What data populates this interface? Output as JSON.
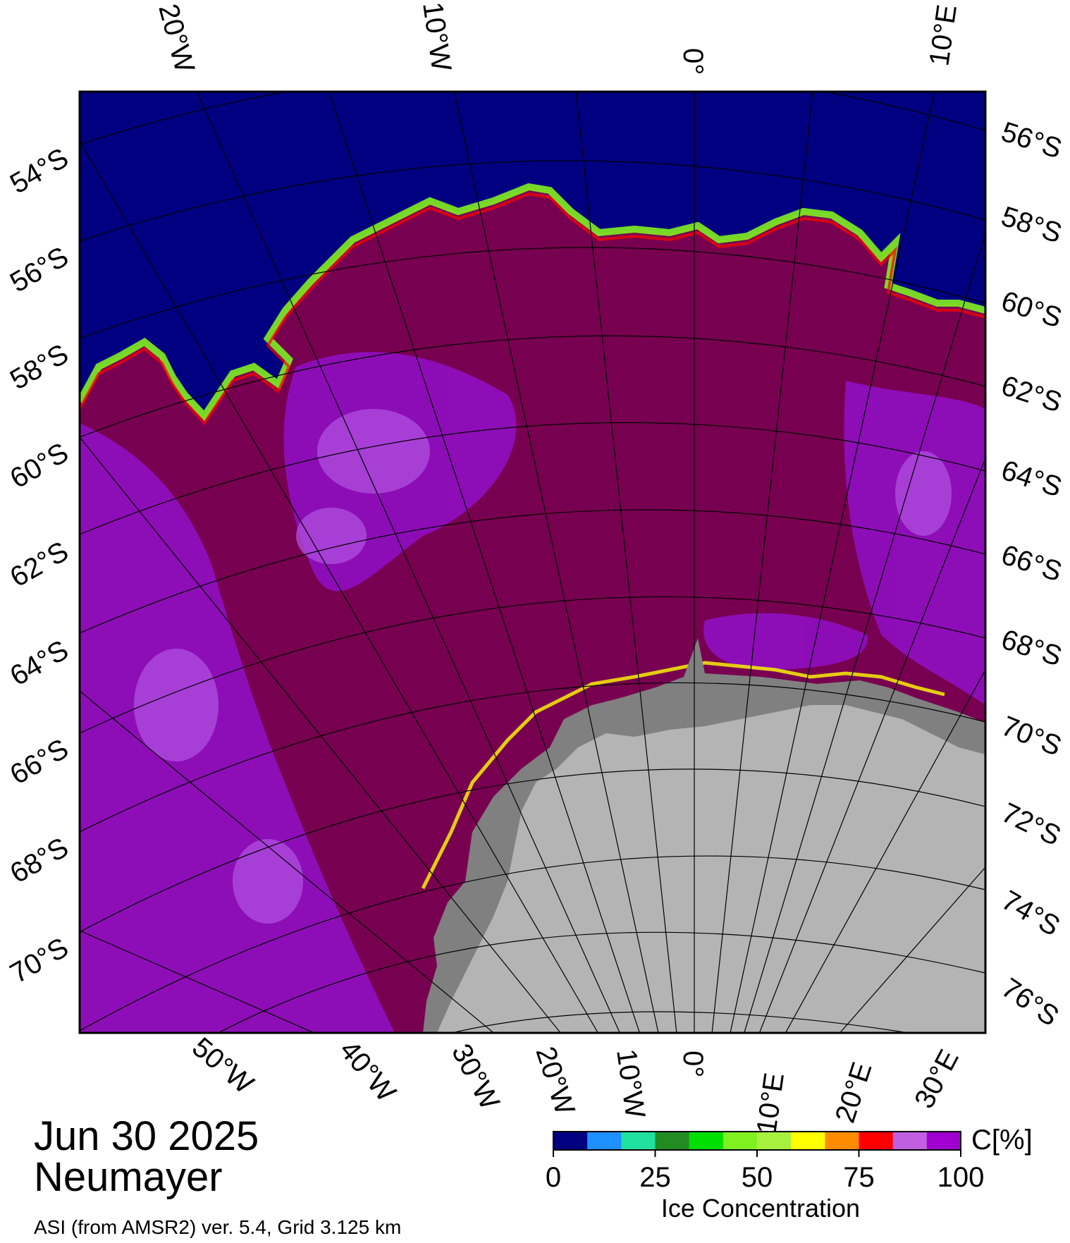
{
  "title": {
    "date": "Jun 30 2025",
    "station": "Neumayer",
    "source": "ASI (from AMSR2) ver. 5.4,  Grid 3.125 km"
  },
  "axes": {
    "top_lon_labels": [
      "20°W",
      "10°W",
      "0°",
      "10°E"
    ],
    "bottom_lon_labels": [
      "50°W",
      "40°W",
      "30°W",
      "20°W",
      "10°W",
      "0°",
      "10°E",
      "20°E",
      "30°E"
    ],
    "left_lat_labels": [
      "54°S",
      "56°S",
      "58°S",
      "60°S",
      "62°S",
      "64°S",
      "66°S",
      "68°S",
      "70°S"
    ],
    "right_lat_labels": [
      "56°S",
      "58°S",
      "60°S",
      "62°S",
      "64°S",
      "66°S",
      "68°S",
      "70°S",
      "72°S",
      "74°S",
      "76°S"
    ]
  },
  "colorbar": {
    "unit_label": "C[%]",
    "axis_label": "Ice Concentration",
    "tick_labels": [
      "0",
      "25",
      "50",
      "75",
      "100"
    ],
    "colors": [
      "#000080",
      "#1e90ff",
      "#20e0a0",
      "#228b22",
      "#00e000",
      "#80f020",
      "#a8f040",
      "#ffff00",
      "#ff8c00",
      "#ff0000",
      "#c060e0",
      "#a000d0"
    ]
  },
  "map_colors": {
    "open_water": "#000080",
    "high_ice": "#780050",
    "very_high_ice": "#9010c8",
    "mid_ice": "#b050e0",
    "ice_shelf": "#808080",
    "land": "#b4b4b4"
  }
}
